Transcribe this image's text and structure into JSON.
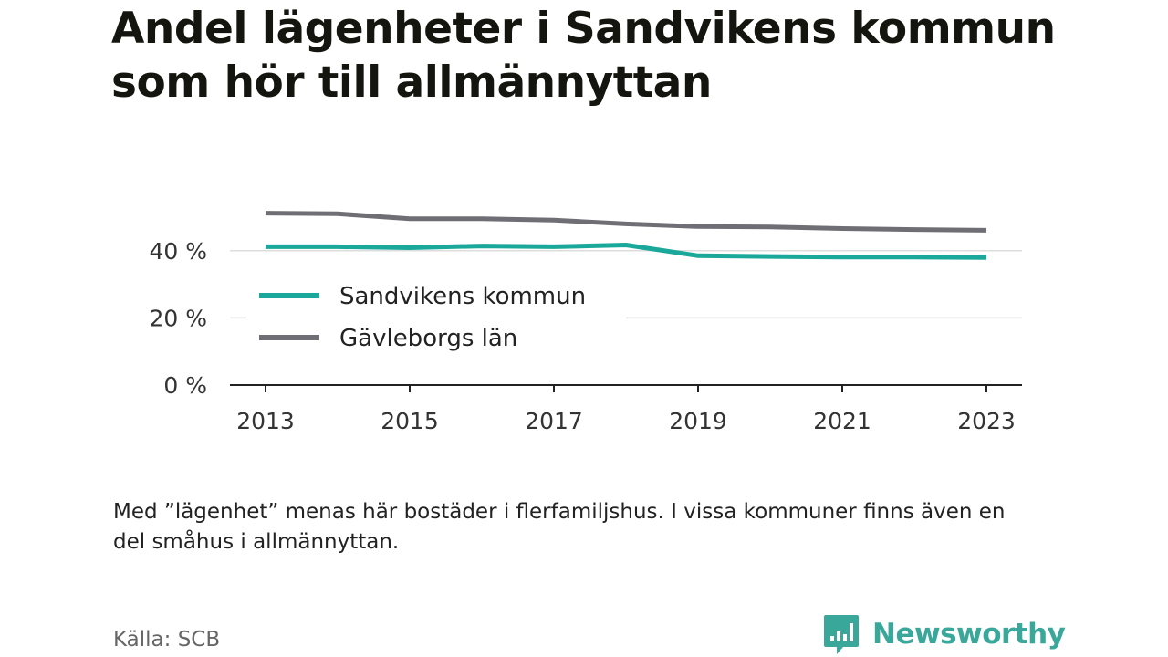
{
  "chart_data": {
    "type": "line",
    "title": "Andel lägenheter i Sandvikens kommun som hör till allmännyttan",
    "xlabel": "",
    "ylabel": "",
    "x": [
      2013,
      2014,
      2015,
      2016,
      2017,
      2018,
      2019,
      2020,
      2021,
      2022,
      2023
    ],
    "x_ticks": [
      "2013",
      "2015",
      "2017",
      "2019",
      "2021",
      "2023"
    ],
    "y_ticks": [
      "0 %",
      "20 %",
      "40 %"
    ],
    "ylim": [
      0,
      60
    ],
    "grid": true,
    "legend_position": "left",
    "series": [
      {
        "name": "Sandvikens kommun",
        "color": "#1aa89a",
        "values": [
          41.2,
          41.2,
          40.9,
          41.4,
          41.2,
          41.7,
          38.5,
          38.3,
          38.1,
          38.1,
          38.0
        ]
      },
      {
        "name": "Gävleborgs län",
        "color": "#6f6e74",
        "values": [
          51.2,
          51.0,
          49.5,
          49.5,
          49.1,
          48.0,
          47.2,
          47.1,
          46.6,
          46.3,
          46.1
        ]
      }
    ]
  },
  "note": "Med ”lägenhet” menas här bostäder i flerfamiljshus. I vissa kommuner finns även en del småhus i allmännyttan.",
  "source": "Källa: SCB",
  "brand": {
    "name": "Newsworthy",
    "color": "#3aa79b"
  }
}
